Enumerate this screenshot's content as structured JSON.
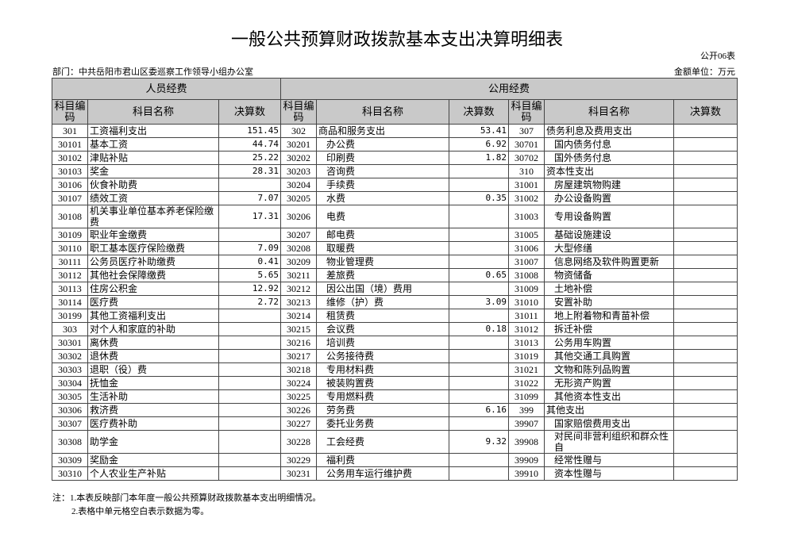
{
  "header": {
    "title": "一般公共预算财政拨款基本支出决算明细表",
    "form_no": "公开06表",
    "department": "部门：中共岳阳市君山区委巡察工作领导小组办公室",
    "unit": "金额单位：万元"
  },
  "table": {
    "groups": [
      "人员经费",
      "公用经费"
    ],
    "columns": [
      "科目编码",
      "科目名称",
      "决算数",
      "科目编码",
      "科目名称",
      "决算数",
      "科目编码",
      "科目名称",
      "决算数"
    ],
    "rows": [
      [
        "301",
        "工资福利支出",
        151.45,
        "302",
        "商品和服务支出",
        53.41,
        "307",
        "债务利息及费用支出",
        null
      ],
      [
        "30101",
        "基本工资",
        44.74,
        "30201",
        "办公费",
        6.92,
        "30701",
        "国内债务付息",
        null
      ],
      [
        "30102",
        "津贴补贴",
        25.22,
        "30202",
        "印刷费",
        1.82,
        "30702",
        "国外债务付息",
        null
      ],
      [
        "30103",
        "奖金",
        28.31,
        "30203",
        "咨询费",
        null,
        "310",
        "资本性支出",
        null
      ],
      [
        "30106",
        "伙食补助费",
        null,
        "30204",
        "手续费",
        null,
        "31001",
        "房屋建筑物购建",
        null
      ],
      [
        "30107",
        "绩效工资",
        7.07,
        "30205",
        "水费",
        0.35,
        "31002",
        "办公设备购置",
        null
      ],
      [
        "30108",
        "机关事业单位基本养老保险缴费",
        17.31,
        "30206",
        "电费",
        null,
        "31003",
        "专用设备购置",
        null
      ],
      [
        "30109",
        "职业年金缴费",
        null,
        "30207",
        "邮电费",
        null,
        "31005",
        "基础设施建设",
        null
      ],
      [
        "30110",
        "职工基本医疗保险缴费",
        7.09,
        "30208",
        "取暖费",
        null,
        "31006",
        "大型修缮",
        null
      ],
      [
        "30111",
        "公务员医疗补助缴费",
        0.41,
        "30209",
        "物业管理费",
        null,
        "31007",
        "信息网络及软件购置更新",
        null
      ],
      [
        "30112",
        "其他社会保障缴费",
        5.65,
        "30211",
        "差旅费",
        0.65,
        "31008",
        "物资储备",
        null
      ],
      [
        "30113",
        "住房公积金",
        12.92,
        "30212",
        "因公出国（境）费用",
        null,
        "31009",
        "土地补偿",
        null
      ],
      [
        "30114",
        "医疗费",
        2.72,
        "30213",
        "维修（护）费",
        3.09,
        "31010",
        "安置补助",
        null
      ],
      [
        "30199",
        "其他工资福利支出",
        null,
        "30214",
        "租赁费",
        null,
        "31011",
        "地上附着物和青苗补偿",
        null
      ],
      [
        "303",
        "对个人和家庭的补助",
        null,
        "30215",
        "会议费",
        0.18,
        "31012",
        "拆迁补偿",
        null
      ],
      [
        "30301",
        "离休费",
        null,
        "30216",
        "培训费",
        null,
        "31013",
        "公务用车购置",
        null
      ],
      [
        "30302",
        "退休费",
        null,
        "30217",
        "公务接待费",
        null,
        "31019",
        "其他交通工具购置",
        null
      ],
      [
        "30303",
        "退职（役）费",
        null,
        "30218",
        "专用材料费",
        null,
        "31021",
        "文物和陈列品购置",
        null
      ],
      [
        "30304",
        "抚恤金",
        null,
        "30224",
        "被装购置费",
        null,
        "31022",
        "无形资产购置",
        null
      ],
      [
        "30305",
        "生活补助",
        null,
        "30225",
        "专用燃料费",
        null,
        "31099",
        "其他资本性支出",
        null
      ],
      [
        "30306",
        "救济费",
        null,
        "30226",
        "劳务费",
        6.16,
        "399",
        "其他支出",
        null
      ],
      [
        "30307",
        "医疗费补助",
        null,
        "30227",
        "委托业务费",
        null,
        "39907",
        "国家赔偿费用支出",
        null
      ],
      [
        "30308",
        "助学金",
        null,
        "30228",
        "工会经费",
        9.32,
        "39908",
        "对民间非营利组织和群众性自",
        null
      ],
      [
        "30309",
        "奖励金",
        null,
        "30229",
        "福利费",
        null,
        "39909",
        "经常性赠与",
        null
      ],
      [
        "30310",
        "个人农业生产补贴",
        null,
        "30231",
        "公务用车运行维护费",
        null,
        "39910",
        "资本性赠与",
        null
      ]
    ]
  },
  "notes": [
    "注：1.本表反映部门本年度一般公共预算财政拨款基本支出明细情况。",
    "2.表格中单元格空白表示数据为零。"
  ]
}
